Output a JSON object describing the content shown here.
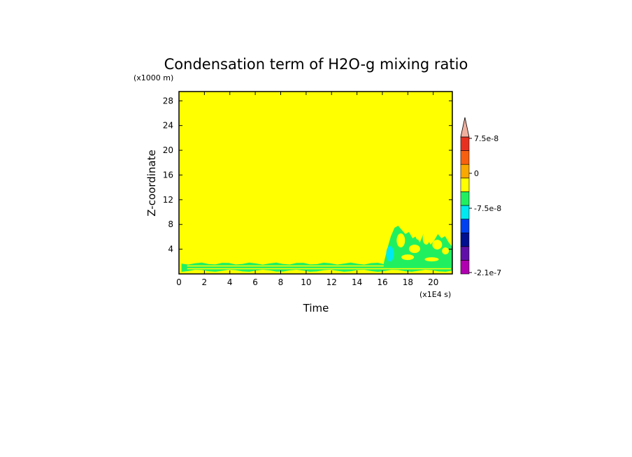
{
  "chart_data": {
    "type": "heatmap",
    "title": "Condensation term of H2O-g mixing ratio",
    "xlabel": "Time",
    "ylabel": "Z-coordinate",
    "x_unit": "(x1E4 s)",
    "y_unit": "(x1000 m)",
    "xlim": [
      0,
      21.5
    ],
    "ylim": [
      0,
      29.5
    ],
    "x_ticks": [
      0,
      2,
      4,
      6,
      8,
      10,
      12,
      14,
      16,
      18,
      20
    ],
    "y_ticks": [
      4,
      8,
      12,
      16,
      20,
      24,
      28
    ],
    "x_tick_labels": [
      "0",
      "2",
      "4",
      "6",
      "8",
      "10",
      "12",
      "14",
      "16",
      "18",
      "20"
    ],
    "y_tick_labels": [
      "4",
      "8",
      "12",
      "16",
      "20",
      "24",
      "28"
    ],
    "background_level_color": "#ffff00",
    "colorbar": {
      "colors": [
        "#b000b0",
        "#6010a8",
        "#001090",
        "#0040f0",
        "#00e8f0",
        "#20f060",
        "#ffff00",
        "#f8a800",
        "#f86010",
        "#e83020"
      ],
      "extend_top_color": "#f0b0a0",
      "labels": [
        "7.5e-8",
        "0",
        "-7.5e-8",
        "-2.1e-7"
      ]
    },
    "regions": [
      {
        "level": "green",
        "color": "#20f060",
        "x_range": [
          0.2,
          21.5
        ],
        "z_range": [
          0.4,
          1.9
        ],
        "description": "thin band near the surface"
      },
      {
        "level": "green",
        "color": "#20f060",
        "x_range": [
          16.1,
          21.5
        ],
        "z_range": [
          1.0,
          7.8
        ],
        "description": "patchy region at later times"
      },
      {
        "level": "cyan",
        "color": "#00e8f0",
        "x_range": [
          16.3,
          16.9
        ],
        "z_range": [
          2.0,
          4.5
        ],
        "description": "small patch"
      }
    ]
  }
}
